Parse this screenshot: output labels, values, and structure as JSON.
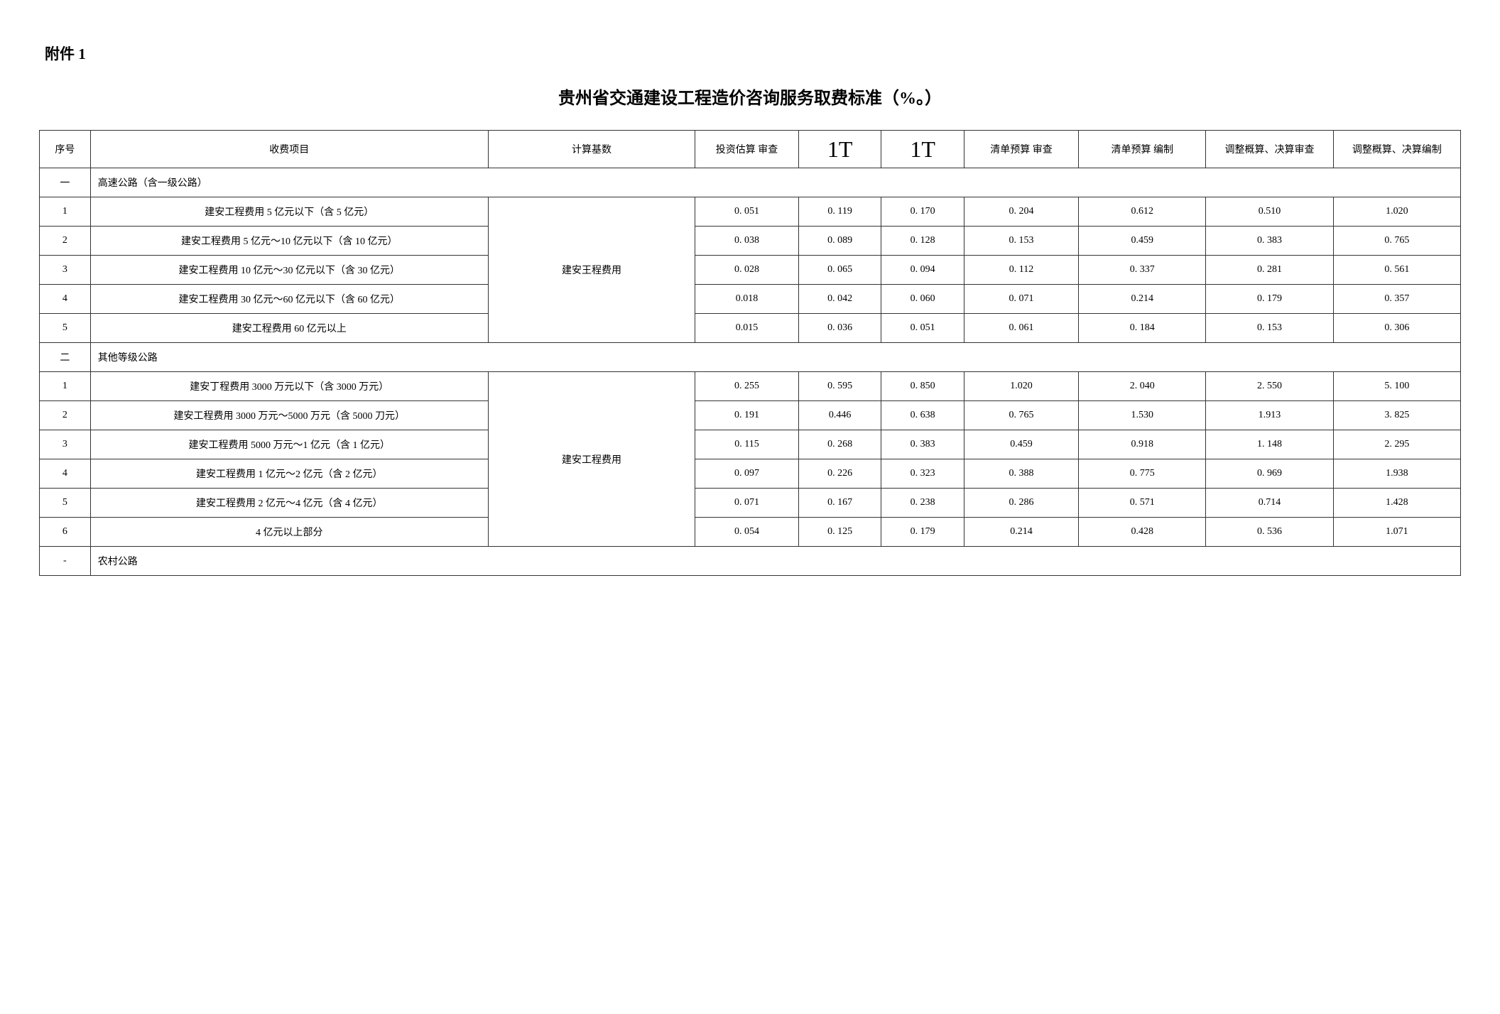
{
  "attachment_label": "附件 1",
  "title": "贵州省交通建设工程造价咨询服务取费标准（%。）",
  "columns": {
    "seq": "序号",
    "item": "收费项目",
    "basis": "计算基数",
    "c1": "投资估算 审查",
    "c2": "1T",
    "c3": "1T",
    "c4": "清单预算 审查",
    "c5": "清单预算 编制",
    "c6": "调整概算、决算审查",
    "c7": "调整概算、决算编制"
  },
  "sections": [
    {
      "seq": "一",
      "label": "高速公路（含一级公路）",
      "basis": "建安王程费用",
      "rows": [
        {
          "seq": "1",
          "item": "建安工程费用 5 亿元以下（含 5 亿元）",
          "v": [
            "0. 051",
            "0. 119",
            "0. 170",
            "0. 204",
            "0.612",
            "0.510",
            "1.020"
          ]
        },
        {
          "seq": "2",
          "item": "建安工程费用 5 亿元～10 亿元以下（含 10 亿元）",
          "v": [
            "0. 038",
            "0. 089",
            "0. 128",
            "0. 153",
            "0.459",
            "0. 383",
            "0. 765"
          ]
        },
        {
          "seq": "3",
          "item": "建安工程费用 10 亿元～30 亿元以下（含 30 亿元）",
          "v": [
            "0. 028",
            "0. 065",
            "0. 094",
            "0. 112",
            "0. 337",
            "0. 281",
            "0. 561"
          ]
        },
        {
          "seq": "4",
          "item": "建安工程费用 30 亿元～60 亿元以下（含 60 亿元）",
          "v": [
            "0.018",
            "0. 042",
            "0. 060",
            "0. 071",
            "0.214",
            "0. 179",
            "0. 357"
          ]
        },
        {
          "seq": "5",
          "item": "建安工程费用 60 亿元以上",
          "v": [
            "0.015",
            "0. 036",
            "0. 051",
            "0. 061",
            "0. 184",
            "0. 153",
            "0. 306"
          ]
        }
      ]
    },
    {
      "seq": "二",
      "label": "其他等级公路",
      "basis": "建安工程费用",
      "rows": [
        {
          "seq": "1",
          "item": "建安丁程费用 3000 万元以下（含 3000 万元）",
          "v": [
            "0. 255",
            "0. 595",
            "0. 850",
            "1.020",
            "2. 040",
            "2. 550",
            "5. 100"
          ]
        },
        {
          "seq": "2",
          "item": "建安工程费用 3000 万元～5000 万元（含 5000 刀元）",
          "v": [
            "0. 191",
            "0.446",
            "0. 638",
            "0. 765",
            "1.530",
            "1.913",
            "3. 825"
          ]
        },
        {
          "seq": "3",
          "item": "建安工程费用 5000 万元～1 亿元（含 1 亿元）",
          "v": [
            "0. 115",
            "0. 268",
            "0. 383",
            "0.459",
            "0.918",
            "1. 148",
            "2. 295"
          ]
        },
        {
          "seq": "4",
          "item": "建安工程费用 1 亿元～2 亿元（含 2 亿元）",
          "v": [
            "0. 097",
            "0. 226",
            "0. 323",
            "0. 388",
            "0. 775",
            "0. 969",
            "1.938"
          ]
        },
        {
          "seq": "5",
          "item": "建安工程费用 2 亿元～4 亿元（含 4 亿元）",
          "v": [
            "0. 071",
            "0. 167",
            "0. 238",
            "0. 286",
            "0. 571",
            "0.714",
            "1.428"
          ]
        },
        {
          "seq": "6",
          "item": "4 亿元以上部分",
          "v": [
            "0. 054",
            "0. 125",
            "0. 179",
            "0.214",
            "0.428",
            "0. 536",
            "1.071"
          ]
        }
      ]
    },
    {
      "seq": "-",
      "label": "农村公路",
      "basis": null,
      "rows": []
    }
  ],
  "styling": {
    "background_color": "#ffffff",
    "border_color": "#333333",
    "text_color": "#000000",
    "title_fontsize": 24,
    "cell_fontsize": 14,
    "attachment_fontsize": 21
  }
}
